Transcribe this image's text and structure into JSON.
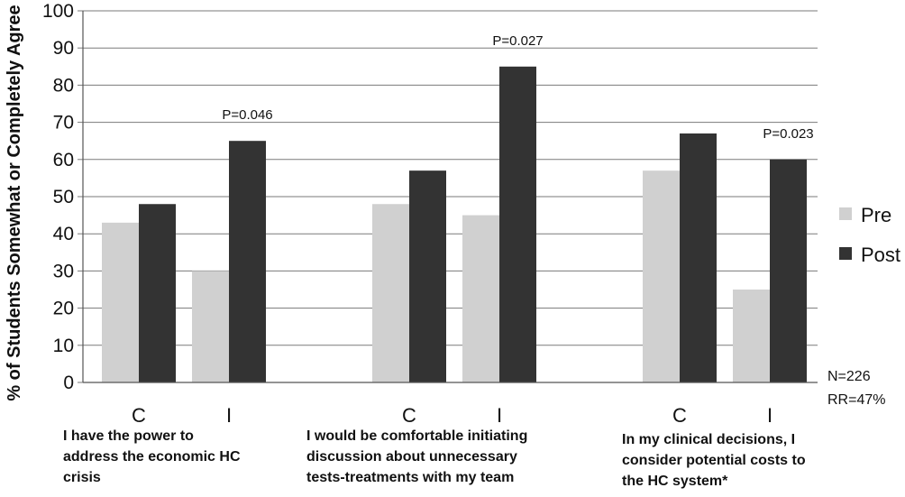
{
  "chart_data": {
    "type": "bar",
    "title": "",
    "ylabel": "% of Students  Somewhat or Completely Agree",
    "ylim": [
      0,
      100
    ],
    "yticks": [
      0,
      10,
      20,
      30,
      40,
      50,
      60,
      70,
      80,
      90,
      100
    ],
    "grid": true,
    "legend_position": "right",
    "colors": {
      "Pre": "#d0d0d0",
      "Post": "#333333"
    },
    "groups": [
      {
        "label": "I have the power to\naddress the economic HC\ncrisis",
        "categories": [
          "C",
          "I"
        ],
        "pre": [
          43,
          30
        ],
        "post": [
          48,
          65
        ],
        "annotations": [
          "",
          "P=0.046"
        ]
      },
      {
        "label": "I would be comfortable initiating\ndiscussion about unnecessary\ntests-treatments with my team",
        "categories": [
          "C",
          "I"
        ],
        "pre": [
          48,
          45
        ],
        "post": [
          57,
          85
        ],
        "annotations": [
          "",
          "P=0.027"
        ]
      },
      {
        "label": "In my clinical decisions, I\nconsider potential costs to\nthe HC system*",
        "categories": [
          "C",
          "I"
        ],
        "pre": [
          57,
          25
        ],
        "post": [
          67,
          60
        ],
        "annotations": [
          "",
          "P=0.023"
        ]
      }
    ],
    "series": [
      {
        "name": "Pre"
      },
      {
        "name": "Post"
      }
    ],
    "notes": [
      "N=226",
      "RR=47%"
    ]
  }
}
